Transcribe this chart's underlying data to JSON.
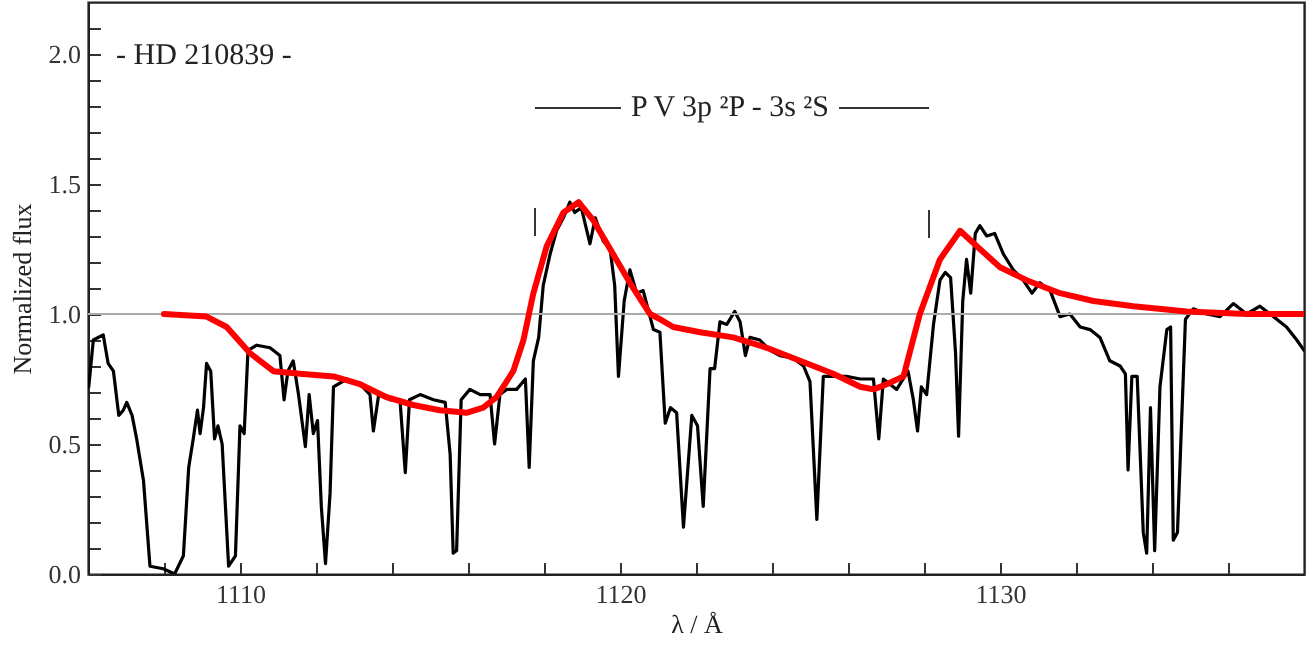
{
  "chart_data": {
    "type": "line",
    "xlabel": "λ / Å",
    "ylabel": "Normalized flux",
    "annotations": [
      "- HD 210839 -",
      "P V 3p ²P - 3s ²S"
    ],
    "xlim": [
      1106,
      1138
    ],
    "ylim": [
      0,
      2.2
    ],
    "xticks": [
      {
        "value": 1108,
        "label": null
      },
      1110,
      {
        "value": 1112,
        "label": null
      },
      {
        "value": 1114,
        "label": null
      },
      {
        "value": 1116,
        "label": null
      },
      {
        "value": 1118,
        "label": null
      },
      1120,
      {
        "value": 1122,
        "label": null
      },
      {
        "value": 1124,
        "label": null
      },
      {
        "value": 1126,
        "label": null
      },
      {
        "value": 1128,
        "label": null
      },
      1130,
      {
        "value": 1132,
        "label": null
      },
      {
        "value": 1134,
        "label": null
      },
      {
        "value": 1136,
        "label": null
      }
    ],
    "yticks": [
      {
        "value": 0,
        "label": "0.0"
      },
      {
        "value": 0.1,
        "label": null
      },
      {
        "value": 0.2,
        "label": null
      },
      {
        "value": 0.3,
        "label": null
      },
      {
        "value": 0.4,
        "label": null
      },
      {
        "value": 0.5,
        "label": "0.5"
      },
      {
        "value": 0.6,
        "label": null
      },
      {
        "value": 0.7,
        "label": null
      },
      {
        "value": 0.8,
        "label": null
      },
      {
        "value": 0.9,
        "label": null
      },
      {
        "value": 1,
        "label": "1.0"
      },
      {
        "value": 1.1,
        "label": null
      },
      {
        "value": 1.2,
        "label": null
      },
      {
        "value": 1.3,
        "label": null
      },
      {
        "value": 1.4,
        "label": null
      },
      {
        "value": 1.5,
        "label": "1.5"
      },
      {
        "value": 1.6,
        "label": null
      },
      {
        "value": 1.7,
        "label": null
      },
      {
        "value": 1.8,
        "label": null
      },
      {
        "value": 1.9,
        "label": null
      },
      {
        "value": 2,
        "label": "2.0"
      },
      {
        "value": 2.1,
        "label": null
      }
    ],
    "ref_lines": [
      {
        "axis": "y",
        "value": 1,
        "color": "#aaaaaa"
      }
    ],
    "series": [
      {
        "color": "#000000",
        "x": [
          1106.02,
          1106.14,
          1106.4,
          1106.53,
          1106.67,
          1106.81,
          1106.93,
          1107.02,
          1107.16,
          1107.28,
          1107.46,
          1107.63,
          1107.98,
          1108.28,
          1108.51,
          1108.65,
          1108.77,
          1108.88,
          1108.95,
          1109.04,
          1109.12,
          1109.23,
          1109.33,
          1109.42,
          1109.53,
          1109.7,
          1109.88,
          1110.0,
          1110.11,
          1110.21,
          1110.44,
          1110.79,
          1111.05,
          1111.16,
          1111.26,
          1111.4,
          1111.54,
          1111.72,
          1111.82,
          1111.93,
          1112.04,
          1112.14,
          1112.25,
          1112.37,
          1112.46,
          1112.81,
          1113.16,
          1113.42,
          1113.51,
          1113.65,
          1113.95,
          1114.21,
          1114.35,
          1114.46,
          1114.74,
          1115.09,
          1115.4,
          1115.53,
          1115.61,
          1115.7,
          1115.82,
          1116.05,
          1116.32,
          1116.58,
          1116.7,
          1116.84,
          1117.02,
          1117.28,
          1117.51,
          1117.61,
          1117.72,
          1117.86,
          1117.98,
          1118.16,
          1118.33,
          1118.51,
          1118.68,
          1118.81,
          1118.98,
          1119.21,
          1119.35,
          1119.56,
          1119.74,
          1119.86,
          1119.96,
          1120.11,
          1120.26,
          1120.44,
          1120.61,
          1120.88,
          1121.05,
          1121.19,
          1121.33,
          1121.49,
          1121.67,
          1121.89,
          1122.04,
          1122.19,
          1122.37,
          1122.49,
          1122.63,
          1122.81,
          1123.02,
          1123.16,
          1123.3,
          1123.42,
          1123.68,
          1123.95,
          1124.21,
          1124.56,
          1124.83,
          1125.0,
          1125.18,
          1125.35,
          1125.61,
          1125.96,
          1126.32,
          1126.67,
          1126.81,
          1126.93,
          1127.28,
          1127.58,
          1127.72,
          1127.83,
          1127.93,
          1128.07,
          1128.25,
          1128.42,
          1128.56,
          1128.7,
          1128.83,
          1128.91,
          1129.02,
          1129.12,
          1129.23,
          1129.35,
          1129.47,
          1129.65,
          1129.86,
          1130.09,
          1130.35,
          1130.61,
          1130.84,
          1131.05,
          1131.32,
          1131.58,
          1131.84,
          1132.11,
          1132.37,
          1132.63,
          1132.89,
          1133.16,
          1133.3,
          1133.37,
          1133.47,
          1133.61,
          1133.77,
          1133.86,
          1133.96,
          1134.07,
          1134.21,
          1134.39,
          1134.49,
          1134.56,
          1134.67,
          1134.88,
          1135.09,
          1135.44,
          1135.79,
          1136.14,
          1136.49,
          1136.84,
          1137.19,
          1137.54,
          1137.81,
          1138.0
        ],
        "values": [
          0.72,
          0.9,
          0.92,
          0.81,
          0.78,
          0.61,
          0.63,
          0.66,
          0.61,
          0.52,
          0.36,
          0.03,
          0.02,
          0.0,
          0.07,
          0.41,
          0.52,
          0.63,
          0.54,
          0.64,
          0.81,
          0.78,
          0.52,
          0.57,
          0.5,
          0.03,
          0.07,
          0.57,
          0.54,
          0.86,
          0.88,
          0.87,
          0.84,
          0.67,
          0.78,
          0.82,
          0.69,
          0.49,
          0.69,
          0.54,
          0.59,
          0.26,
          0.04,
          0.31,
          0.72,
          0.75,
          0.73,
          0.69,
          0.55,
          0.69,
          0.67,
          0.67,
          0.39,
          0.67,
          0.69,
          0.67,
          0.66,
          0.46,
          0.08,
          0.09,
          0.67,
          0.71,
          0.69,
          0.69,
          0.5,
          0.69,
          0.71,
          0.71,
          0.75,
          0.41,
          0.82,
          0.91,
          1.11,
          1.23,
          1.32,
          1.37,
          1.43,
          1.39,
          1.41,
          1.27,
          1.37,
          1.28,
          1.25,
          1.11,
          0.76,
          1.05,
          1.17,
          1.08,
          1.09,
          0.94,
          0.93,
          0.58,
          0.64,
          0.62,
          0.18,
          0.61,
          0.57,
          0.26,
          0.79,
          0.79,
          0.97,
          0.96,
          1.01,
          0.97,
          0.84,
          0.91,
          0.9,
          0.86,
          0.84,
          0.83,
          0.8,
          0.74,
          0.21,
          0.76,
          0.76,
          0.76,
          0.75,
          0.75,
          0.52,
          0.75,
          0.71,
          0.78,
          0.67,
          0.55,
          0.72,
          0.69,
          0.96,
          1.13,
          1.16,
          1.14,
          0.85,
          0.53,
          1.05,
          1.21,
          1.08,
          1.31,
          1.34,
          1.3,
          1.31,
          1.23,
          1.17,
          1.13,
          1.08,
          1.12,
          1.09,
          0.99,
          1.0,
          0.95,
          0.94,
          0.91,
          0.82,
          0.8,
          0.77,
          0.4,
          0.76,
          0.76,
          0.16,
          0.08,
          0.64,
          0.09,
          0.72,
          0.94,
          0.95,
          0.13,
          0.16,
          0.98,
          1.02,
          1.0,
          0.99,
          1.04,
          1.0,
          1.03,
          0.99,
          0.95,
          0.9,
          0.86
        ]
      },
      {
        "color": "#ff0000",
        "x": [
          1108.0,
          1109.12,
          1109.65,
          1110.26,
          1110.88,
          1111.58,
          1112.46,
          1113.16,
          1113.86,
          1114.56,
          1115.26,
          1115.96,
          1116.4,
          1116.75,
          1117.19,
          1117.46,
          1117.72,
          1118.07,
          1118.51,
          1118.91,
          1119.3,
          1119.74,
          1120.26,
          1120.79,
          1121.05,
          1121.4,
          1122.11,
          1122.98,
          1123.86,
          1124.74,
          1125.61,
          1126.32,
          1126.67,
          1127.02,
          1127.46,
          1127.89,
          1128.42,
          1128.95,
          1129.47,
          1130.0,
          1130.7,
          1131.58,
          1132.46,
          1133.51,
          1134.91,
          1136.49,
          1138.0
        ],
        "values": [
          1.0,
          0.99,
          0.95,
          0.85,
          0.78,
          0.77,
          0.76,
          0.73,
          0.68,
          0.65,
          0.63,
          0.62,
          0.64,
          0.68,
          0.78,
          0.9,
          1.08,
          1.26,
          1.39,
          1.43,
          1.36,
          1.25,
          1.12,
          1.0,
          0.98,
          0.95,
          0.93,
          0.91,
          0.87,
          0.82,
          0.77,
          0.72,
          0.71,
          0.73,
          0.76,
          1.0,
          1.21,
          1.32,
          1.25,
          1.18,
          1.13,
          1.08,
          1.05,
          1.03,
          1.01,
          1.0,
          1.0
        ]
      }
    ]
  }
}
